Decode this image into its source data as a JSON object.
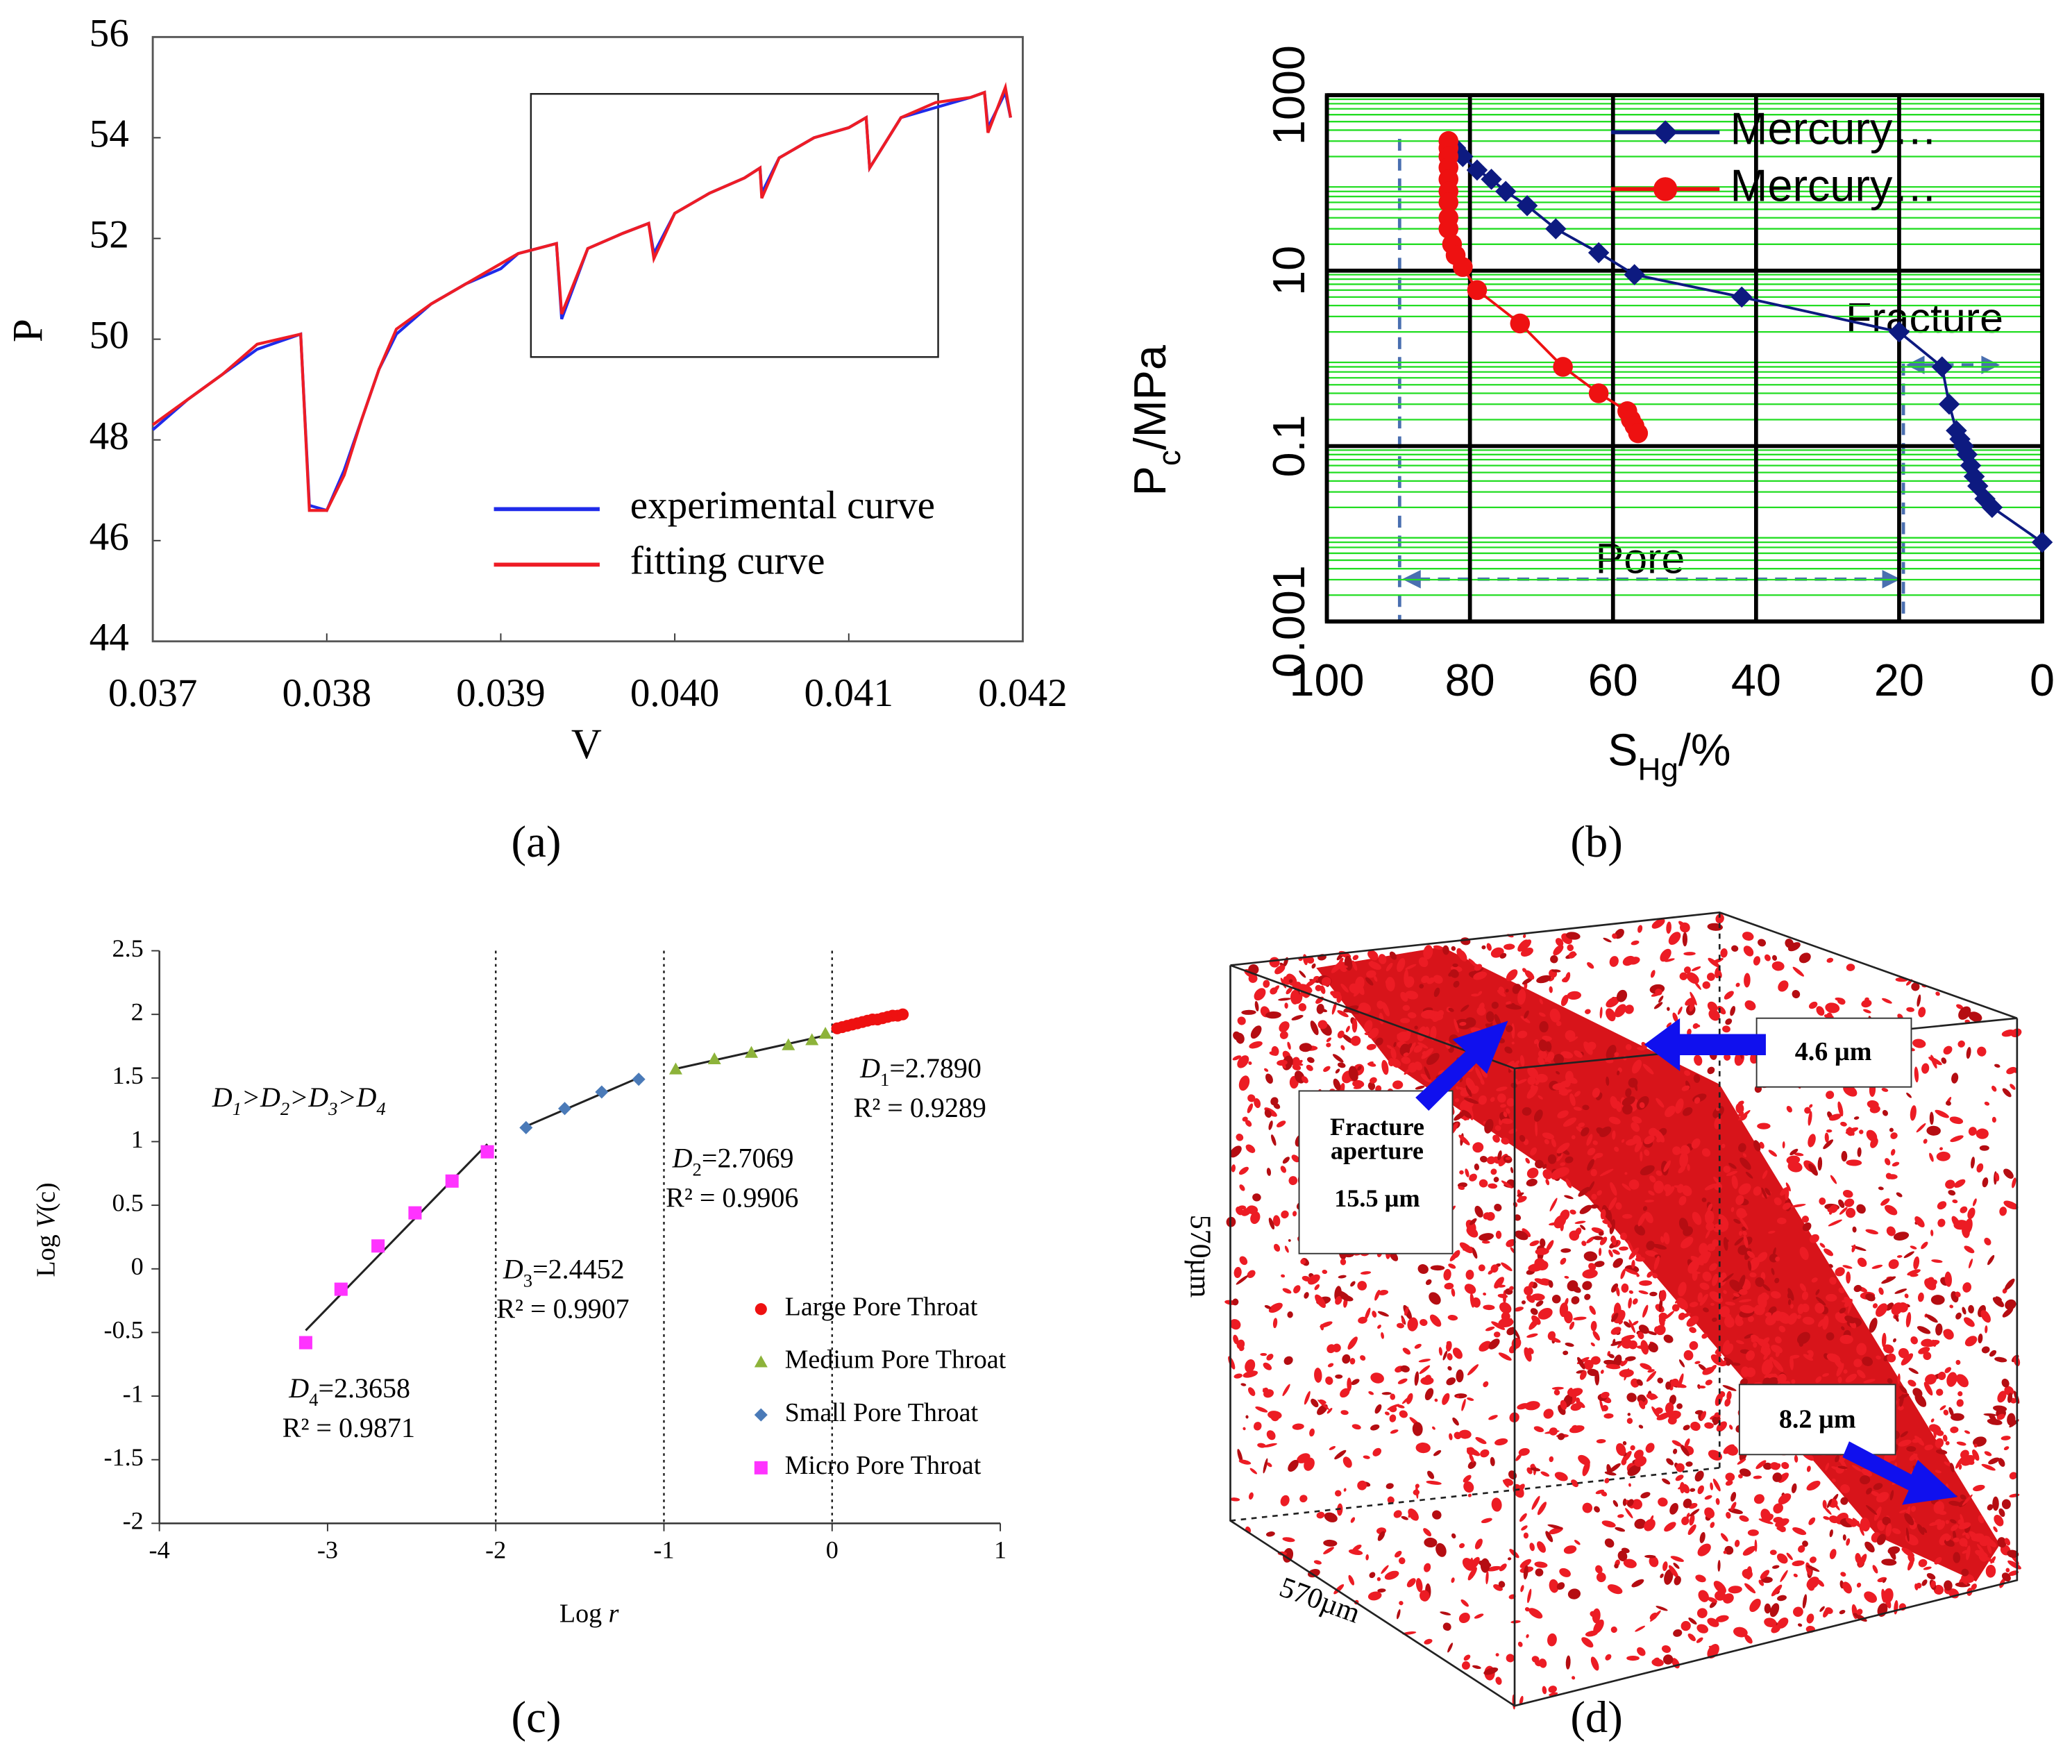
{
  "chart_data": [
    {
      "type": "line",
      "xlabel": "V",
      "ylabel": "P",
      "xlim": [
        0.037,
        0.042
      ],
      "ylim": [
        44,
        56
      ],
      "xticks": [
        0.037,
        0.038,
        0.039,
        {
          "value": 0.04,
          "label": "0.040"
        },
        0.041,
        0.042
      ],
      "yticks": [
        44,
        46,
        48,
        50,
        52,
        54,
        56
      ],
      "legend": "lower right",
      "x": [
        0.037,
        0.0372,
        0.0374,
        0.0376,
        0.03785,
        0.0379,
        0.038,
        0.0381,
        0.0382,
        0.0383,
        0.0384,
        0.0386,
        0.0388,
        0.039,
        0.0391,
        0.03932,
        0.03935,
        0.0395,
        0.0397,
        0.03985,
        0.03988,
        0.04,
        0.0402,
        0.0404,
        0.04049,
        0.0405,
        0.0406,
        0.0408,
        0.041,
        0.0411,
        0.04112,
        0.0413,
        0.0415,
        0.0417,
        0.04178,
        0.0418,
        0.0419,
        0.04193
      ],
      "series": [
        {
          "name": "experimental curve",
          "color": "#1f2bea",
          "values": [
            48.2,
            48.8,
            49.3,
            49.8,
            50.1,
            46.7,
            46.6,
            47.4,
            48.4,
            49.4,
            50.1,
            50.7,
            51.1,
            51.4,
            51.7,
            51.9,
            50.4,
            51.8,
            52.1,
            52.3,
            51.7,
            52.5,
            52.9,
            53.2,
            53.4,
            52.9,
            53.6,
            54.0,
            54.2,
            54.4,
            53.4,
            54.4,
            54.6,
            54.8,
            54.9,
            54.2,
            54.9,
            54.4
          ]
        },
        {
          "name": "fitting curve",
          "color": "#ee1c25",
          "values": [
            48.3,
            48.8,
            49.3,
            49.9,
            50.1,
            46.6,
            46.6,
            47.3,
            48.4,
            49.4,
            50.2,
            50.7,
            51.1,
            51.5,
            51.7,
            51.9,
            50.5,
            51.8,
            52.1,
            52.3,
            51.6,
            52.5,
            52.9,
            53.2,
            53.4,
            52.8,
            53.6,
            54.0,
            54.2,
            54.4,
            53.4,
            54.4,
            54.7,
            54.8,
            54.9,
            54.1,
            55.0,
            54.4
          ]
        }
      ]
    },
    {
      "type": "line",
      "markers": true,
      "ylog": true,
      "grid": true,
      "minor_grid": true,
      "minor_color": "#22dd22",
      "legend": "upper right",
      "xlabel": {
        "main": "S",
        "sub": "Hg",
        "rest": "/%"
      },
      "ylabel": {
        "main": "P",
        "sub": "c",
        "rest": "/MPa"
      },
      "xlim": [
        100,
        0
      ],
      "ylim": [
        0.001,
        1000
      ],
      "xticks": [
        100,
        80,
        60,
        40,
        20,
        0
      ],
      "yticks": [
        0.001,
        0.1,
        10,
        1000
      ],
      "annotations": [
        "Fracture",
        "Pore"
      ],
      "series": [
        {
          "name": "Mercury…",
          "color": "#0d1a80",
          "marker": "diamond",
          "x": [
            82,
            81,
            79,
            77,
            75,
            72,
            68,
            62,
            57,
            42,
            20,
            14,
            13,
            12,
            11.5,
            11,
            10.5,
            10,
            9.5,
            9,
            8,
            7,
            0
          ],
          "values": [
            250,
            200,
            140,
            110,
            80,
            55,
            30,
            16,
            9,
            5,
            2,
            0.8,
            0.3,
            0.15,
            0.12,
            0.1,
            0.08,
            0.06,
            0.045,
            0.035,
            0.025,
            0.02,
            0.008
          ]
        },
        {
          "name": "Mercury…",
          "color": "#ee1111",
          "marker": "circle",
          "x": [
            83,
            83,
            83,
            83,
            83,
            83,
            83,
            83,
            83,
            82.5,
            82,
            81,
            79,
            73,
            67,
            62,
            58,
            57.5,
            57,
            56.5
          ],
          "values": [
            300,
            250,
            200,
            150,
            110,
            80,
            60,
            40,
            30,
            20,
            15,
            11,
            6,
            2.5,
            0.8,
            0.4,
            0.25,
            0.2,
            0.17,
            0.14
          ]
        }
      ]
    },
    {
      "type": "scatter",
      "xlabel": {
        "pre": "Log ",
        "italic": "r"
      },
      "ylabel": {
        "pre": "Log ",
        "italic": "V",
        "post": "(c)"
      },
      "xlim": [
        -4,
        1
      ],
      "ylim": [
        -2,
        2.5
      ],
      "xticks": [
        -4,
        -3,
        -2,
        -1,
        0,
        1
      ],
      "yticks": [
        -2,
        -1.5,
        -1,
        -0.5,
        0,
        0.5,
        1,
        1.5,
        2,
        2.5
      ],
      "vlines": [
        -2,
        -1,
        0
      ],
      "legend": "lower right",
      "inequality": {
        "symbol": "D",
        "subs": [
          "1",
          "2",
          "3",
          "4"
        ],
        "sep": ">"
      },
      "annotations": [
        {
          "symbol": "D",
          "sub": "1",
          "text": "=2.7890",
          "r2": "R² = 0.9289"
        },
        {
          "symbol": "D",
          "sub": "2",
          "text": "=2.7069",
          "r2": "R² = 0.9906"
        },
        {
          "symbol": "D",
          "sub": "3",
          "text": "=2.4452",
          "r2": "R² = 0.9907"
        },
        {
          "symbol": "D",
          "sub": "4",
          "text": "=2.3658",
          "r2": "R² = 0.9871"
        }
      ],
      "series": [
        {
          "name": "Large Pore Throat",
          "color": "#ee1111",
          "marker": "circle",
          "fit_color": "#c01010",
          "x": [
            0.03,
            0.06,
            0.09,
            0.12,
            0.15,
            0.18,
            0.21,
            0.24,
            0.27,
            0.3,
            0.33,
            0.36,
            0.39,
            0.42
          ],
          "values": [
            1.89,
            1.9,
            1.91,
            1.92,
            1.93,
            1.94,
            1.95,
            1.96,
            1.96,
            1.97,
            1.98,
            1.99,
            1.99,
            2.0
          ]
        },
        {
          "name": "Medium Pore Throat",
          "color": "#8db33a",
          "marker": "triangle",
          "fit_color": "#222222",
          "x": [
            -0.93,
            -0.7,
            -0.48,
            -0.26,
            -0.12,
            -0.04
          ],
          "values": [
            1.57,
            1.65,
            1.7,
            1.76,
            1.8,
            1.85
          ]
        },
        {
          "name": "Small Pore Throat",
          "color": "#4a7ab8",
          "marker": "diamond",
          "fit_color": "#222222",
          "x": [
            -1.82,
            -1.59,
            -1.37,
            -1.15
          ],
          "values": [
            1.11,
            1.26,
            1.39,
            1.49
          ]
        },
        {
          "name": "Micro Pore Throat",
          "color": "#ff33ff",
          "marker": "square",
          "fit_color": "#222222",
          "x": [
            -3.13,
            -2.92,
            -2.7,
            -2.48,
            -2.26,
            -2.05
          ],
          "values": [
            -0.58,
            -0.16,
            0.18,
            0.44,
            0.69,
            0.92
          ]
        }
      ]
    }
  ],
  "panel_d": {
    "aperture_right": "4.6 µm",
    "fracture_label": [
      "Fracture",
      "aperture"
    ],
    "aperture_left": "15.5 µm",
    "aperture_low": "8.2 µm",
    "edge_bottom": "570µm",
    "edge_side": "570µm"
  },
  "panel_labels": [
    "(a)",
    "(b)",
    "(c)",
    "(d)"
  ]
}
